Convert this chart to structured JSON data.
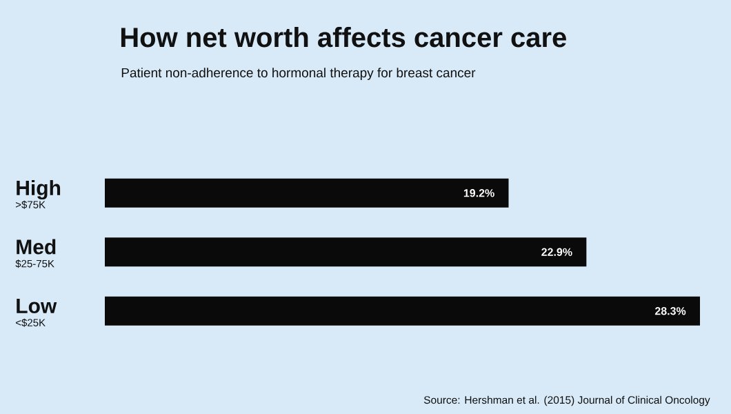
{
  "chart_data": {
    "type": "bar",
    "orientation": "horizontal",
    "title": "How net worth affects cancer care",
    "subtitle": "Patient non-adherence to hormonal therapy for breast cancer",
    "categories": [
      "High",
      "Med",
      "Low"
    ],
    "values": [
      19.2,
      22.9,
      28.3
    ],
    "value_labels": [
      "19.2%",
      "22.9%",
      "28.3%"
    ],
    "color": "#0a0a0a",
    "annotations": [
      ">$75K",
      "$25-75K",
      "<$25K",
      "Source: Hershman et al. (2015) Journal of Clinical Oncology"
    ]
  }
}
